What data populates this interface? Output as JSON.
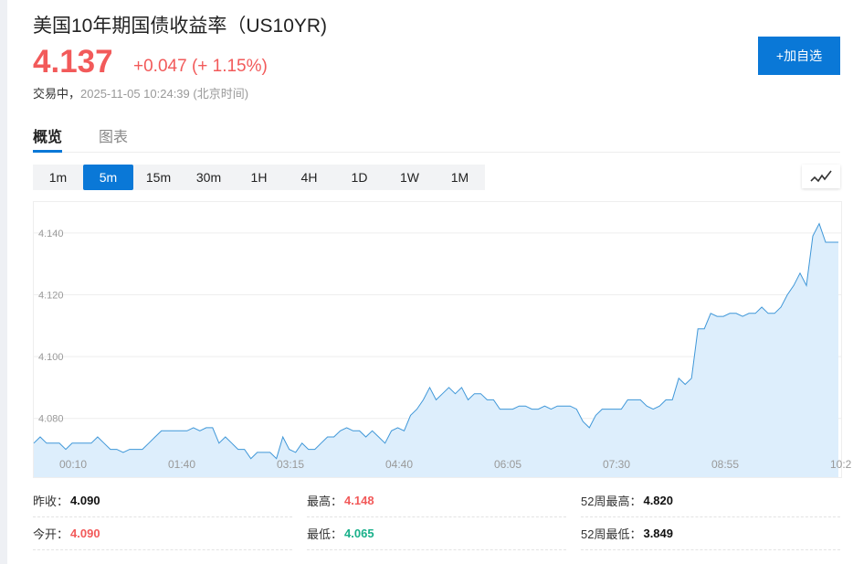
{
  "header": {
    "title": "美国10年期国债收益率（US10YR)",
    "price": "4.137",
    "change": "+0.047",
    "change_pct": "(+ 1.15%)",
    "status": "交易中，",
    "timestamp": "2025-11-05 10:24:39 (北京时间)",
    "add_button": "+加自选"
  },
  "tabs": [
    {
      "label": "概览",
      "active": true
    },
    {
      "label": "图表",
      "active": false
    }
  ],
  "periods": [
    "1m",
    "5m",
    "15m",
    "30m",
    "1H",
    "4H",
    "1D",
    "1W",
    "1M"
  ],
  "active_period": "5m",
  "chart_type_icon": "line-chart-icon",
  "colors": {
    "up": "#f25a5a",
    "down": "#19b08a",
    "accent": "#0a78d7",
    "line": "#3f97d8",
    "fill": "#ddeefc"
  },
  "chart_data": {
    "type": "area",
    "ylim": [
      4.061,
      4.15
    ],
    "yticks": [
      "4.080",
      "4.100",
      "4.120",
      "4.140"
    ],
    "xticks": [
      "00:10",
      "01:40",
      "03:15",
      "04:40",
      "06:05",
      "07:30",
      "08:55",
      "10:2"
    ],
    "grid": true,
    "values": [
      4.072,
      4.074,
      4.072,
      4.072,
      4.072,
      4.07,
      4.072,
      4.072,
      4.072,
      4.072,
      4.074,
      4.072,
      4.07,
      4.07,
      4.069,
      4.07,
      4.07,
      4.07,
      4.072,
      4.074,
      4.076,
      4.076,
      4.076,
      4.076,
      4.076,
      4.077,
      4.076,
      4.077,
      4.077,
      4.072,
      4.074,
      4.072,
      4.07,
      4.07,
      4.067,
      4.069,
      4.069,
      4.069,
      4.067,
      4.074,
      4.07,
      4.069,
      4.072,
      4.07,
      4.07,
      4.072,
      4.074,
      4.074,
      4.076,
      4.077,
      4.076,
      4.076,
      4.074,
      4.076,
      4.074,
      4.072,
      4.076,
      4.077,
      4.076,
      4.081,
      4.083,
      4.086,
      4.09,
      4.086,
      4.088,
      4.09,
      4.088,
      4.09,
      4.086,
      4.088,
      4.088,
      4.086,
      4.086,
      4.083,
      4.083,
      4.083,
      4.084,
      4.084,
      4.083,
      4.083,
      4.084,
      4.083,
      4.084,
      4.084,
      4.084,
      4.083,
      4.079,
      4.077,
      4.081,
      4.083,
      4.083,
      4.083,
      4.083,
      4.086,
      4.086,
      4.086,
      4.084,
      4.083,
      4.084,
      4.086,
      4.086,
      4.093,
      4.091,
      4.093,
      4.109,
      4.109,
      4.114,
      4.113,
      4.113,
      4.114,
      4.114,
      4.113,
      4.114,
      4.114,
      4.116,
      4.114,
      4.114,
      4.116,
      4.12,
      4.123,
      4.127,
      4.123,
      4.139,
      4.143,
      4.137,
      4.137,
      4.137
    ]
  },
  "stats": [
    [
      {
        "label": "昨收：",
        "value": "4.090",
        "tone": ""
      },
      {
        "label": "最高：",
        "value": "4.148",
        "tone": "up"
      },
      {
        "label": "52周最高：",
        "value": "4.820",
        "tone": ""
      }
    ],
    [
      {
        "label": "今开：",
        "value": "4.090",
        "tone": "up"
      },
      {
        "label": "最低：",
        "value": "4.065",
        "tone": "down"
      },
      {
        "label": "52周最低：",
        "value": "3.849",
        "tone": ""
      }
    ]
  ]
}
